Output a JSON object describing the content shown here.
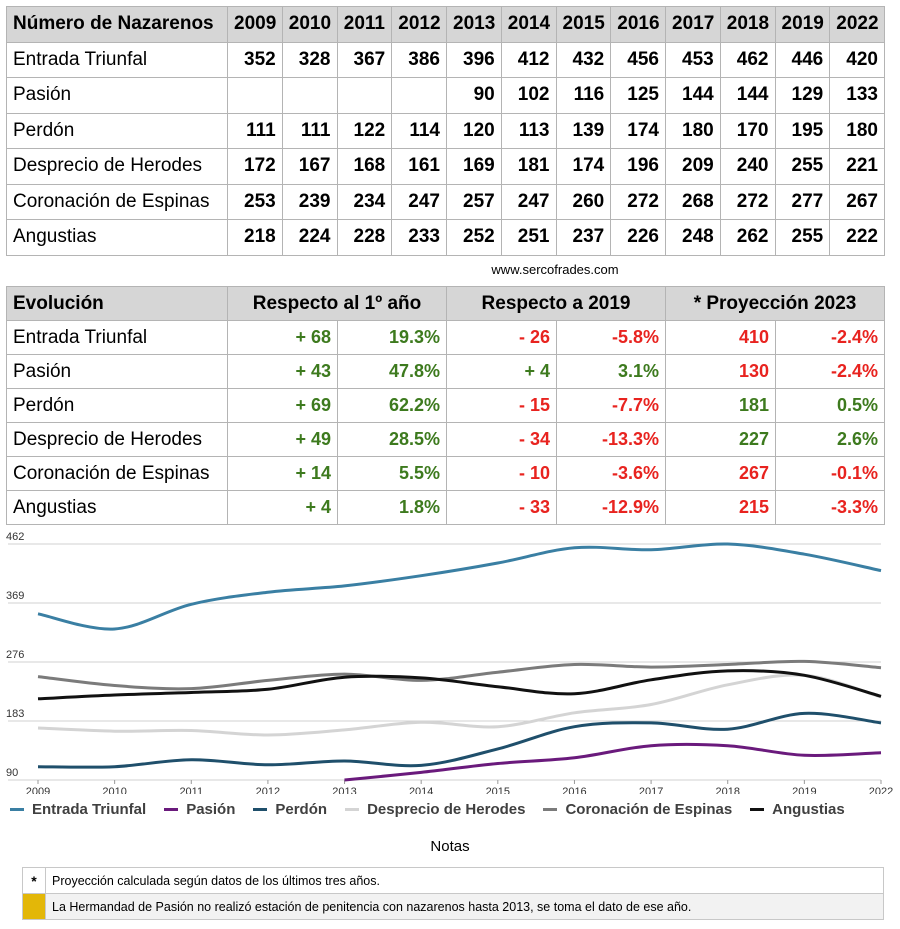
{
  "table_nazarenos": {
    "header": "Número de Nazarenos",
    "years": [
      "2009",
      "2010",
      "2011",
      "2012",
      "2013",
      "2014",
      "2015",
      "2016",
      "2017",
      "2018",
      "2019",
      "2022"
    ],
    "rows": [
      {
        "name": "Entrada Triunfal",
        "values": [
          "352",
          "328",
          "367",
          "386",
          "396",
          "412",
          "432",
          "456",
          "453",
          "462",
          "446",
          "420"
        ]
      },
      {
        "name": "Pasión",
        "values": [
          "",
          "",
          "",
          "",
          "90",
          "102",
          "116",
          "125",
          "144",
          "144",
          "129",
          "133"
        ]
      },
      {
        "name": "Perdón",
        "values": [
          "111",
          "111",
          "122",
          "114",
          "120",
          "113",
          "139",
          "174",
          "180",
          "170",
          "195",
          "180"
        ]
      },
      {
        "name": "Desprecio de Herodes",
        "values": [
          "172",
          "167",
          "168",
          "161",
          "169",
          "181",
          "174",
          "196",
          "209",
          "240",
          "255",
          "221"
        ]
      },
      {
        "name": "Coronación de Espinas",
        "values": [
          "253",
          "239",
          "234",
          "247",
          "257",
          "247",
          "260",
          "272",
          "268",
          "272",
          "277",
          "267"
        ]
      },
      {
        "name": "Angustias",
        "values": [
          "218",
          "224",
          "228",
          "233",
          "252",
          "251",
          "237",
          "226",
          "248",
          "262",
          "255",
          "222"
        ]
      }
    ]
  },
  "source": "www.sercofrades.com",
  "table_evolucion": {
    "header": "Evolución",
    "groups": [
      "Respecto al 1º año",
      "Respecto a 2019",
      "* Proyección 2023"
    ],
    "rows": [
      {
        "name": "Entrada Triunfal",
        "cells": [
          {
            "v": "+ 68",
            "c": "g"
          },
          {
            "v": "19.3%",
            "c": "g"
          },
          {
            "v": "- 26",
            "c": "r"
          },
          {
            "v": "-5.8%",
            "c": "r"
          },
          {
            "v": "410",
            "c": "r"
          },
          {
            "v": "-2.4%",
            "c": "r"
          }
        ]
      },
      {
        "name": "Pasión",
        "cells": [
          {
            "v": "+ 43",
            "c": "g"
          },
          {
            "v": "47.8%",
            "c": "g"
          },
          {
            "v": "+ 4",
            "c": "g"
          },
          {
            "v": "3.1%",
            "c": "g"
          },
          {
            "v": "130",
            "c": "r"
          },
          {
            "v": "-2.4%",
            "c": "r"
          }
        ]
      },
      {
        "name": "Perdón",
        "cells": [
          {
            "v": "+ 69",
            "c": "g"
          },
          {
            "v": "62.2%",
            "c": "g"
          },
          {
            "v": "- 15",
            "c": "r"
          },
          {
            "v": "-7.7%",
            "c": "r"
          },
          {
            "v": "181",
            "c": "g"
          },
          {
            "v": "0.5%",
            "c": "g"
          }
        ]
      },
      {
        "name": "Desprecio de Herodes",
        "cells": [
          {
            "v": "+ 49",
            "c": "g"
          },
          {
            "v": "28.5%",
            "c": "g"
          },
          {
            "v": "- 34",
            "c": "r"
          },
          {
            "v": "-13.3%",
            "c": "r"
          },
          {
            "v": "227",
            "c": "g"
          },
          {
            "v": "2.6%",
            "c": "g"
          }
        ]
      },
      {
        "name": "Coronación de Espinas",
        "cells": [
          {
            "v": "+ 14",
            "c": "g"
          },
          {
            "v": "5.5%",
            "c": "g"
          },
          {
            "v": "- 10",
            "c": "r"
          },
          {
            "v": "-3.6%",
            "c": "r"
          },
          {
            "v": "267",
            "c": "r"
          },
          {
            "v": "-0.1%",
            "c": "r"
          }
        ]
      },
      {
        "name": "Angustias",
        "cells": [
          {
            "v": "+ 4",
            "c": "g"
          },
          {
            "v": "1.8%",
            "c": "g"
          },
          {
            "v": "- 33",
            "c": "r"
          },
          {
            "v": "-12.9%",
            "c": "r"
          },
          {
            "v": "215",
            "c": "r"
          },
          {
            "v": "-3.3%",
            "c": "r"
          }
        ]
      }
    ]
  },
  "chart_data": {
    "type": "line",
    "x": [
      "2009",
      "2010",
      "2011",
      "2012",
      "2013",
      "2014",
      "2015",
      "2016",
      "2017",
      "2018",
      "2019",
      "2022"
    ],
    "ylim": [
      90,
      462
    ],
    "yticks": [
      "462",
      "369",
      "276",
      "183",
      "90"
    ],
    "grid": true,
    "legend": "bottom",
    "series": [
      {
        "name": "Entrada Triunfal",
        "color": "#3a7fa3",
        "values": [
          352,
          328,
          367,
          386,
          396,
          412,
          432,
          456,
          453,
          462,
          446,
          420
        ]
      },
      {
        "name": "Pasión",
        "color": "#6a1a7c",
        "values": [
          null,
          null,
          null,
          null,
          90,
          102,
          116,
          125,
          144,
          144,
          129,
          133
        ]
      },
      {
        "name": "Perdón",
        "color": "#1f4f6b",
        "values": [
          111,
          111,
          122,
          114,
          120,
          113,
          139,
          174,
          180,
          170,
          195,
          180
        ]
      },
      {
        "name": "Desprecio de Herodes",
        "color": "#d4d4d4",
        "values": [
          172,
          167,
          168,
          161,
          169,
          181,
          174,
          196,
          209,
          240,
          255,
          221
        ]
      },
      {
        "name": "Coronación de Espinas",
        "color": "#7b7b7b",
        "values": [
          253,
          239,
          234,
          247,
          257,
          247,
          260,
          272,
          268,
          272,
          277,
          267
        ]
      },
      {
        "name": "Angustias",
        "color": "#111111",
        "values": [
          218,
          224,
          228,
          233,
          252,
          251,
          237,
          226,
          248,
          262,
          255,
          222
        ]
      }
    ]
  },
  "notes": {
    "title": "Notas",
    "items": [
      {
        "mark": "*",
        "text": "Proyección calculada según datos de los últimos tres años."
      },
      {
        "mark": "",
        "text": "La Hermandad de Pasión no realizó estación de penitencia con nazarenos hasta 2013, se toma el dato de ese año."
      }
    ]
  }
}
